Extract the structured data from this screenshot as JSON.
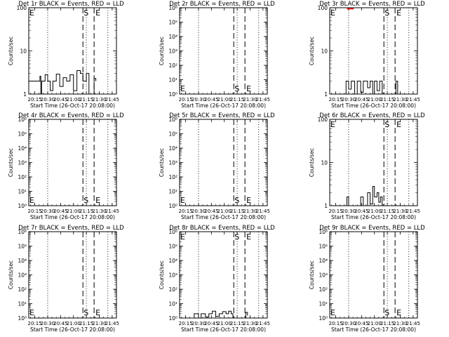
{
  "figure": {
    "title_suffix": "BLACK = Events, RED = LLD",
    "xlabel": "Start Time (26-Oct-17 20:08:00)",
    "ylabel": "Counts/sec",
    "x_ticks": [
      "20:15",
      "20:30",
      "20:45",
      "21:00",
      "21:15",
      "21:30",
      "21:45"
    ],
    "x_range": [
      "20:08",
      "21:50"
    ],
    "marker_s": "S",
    "marker_e": "E",
    "colors": {
      "events": "#000000",
      "lld": "#ff0000"
    }
  },
  "chart_data": [
    {
      "type": "line",
      "title": "Det 1r BLACK = Events, RED = LLD",
      "yscale": "log",
      "ylim": [
        1,
        100
      ],
      "y_ticks": [
        "1",
        "10",
        "100"
      ],
      "xlabel": "Start Time (26-Oct-17 20:08:00)",
      "ylabel": "Counts/sec",
      "dotted_lines": [
        "20:30",
        "21:15",
        "21:40"
      ],
      "dashed_lines": [
        "21:11",
        "21:24"
      ],
      "s_at": "21:11",
      "e_at": "21:24",
      "events_series": [
        {
          "x": "20:08",
          "y": 2
        },
        {
          "x": "20:20",
          "y": 2
        },
        {
          "x": "20:21",
          "y": 2.6
        },
        {
          "x": "20:22",
          "y": 1
        },
        {
          "x": "20:23",
          "y": 2
        },
        {
          "x": "20:27",
          "y": 2.8
        },
        {
          "x": "20:30",
          "y": 2
        },
        {
          "x": "20:33",
          "y": 1.2
        },
        {
          "x": "20:36",
          "y": 2
        },
        {
          "x": "20:40",
          "y": 2.9
        },
        {
          "x": "20:44",
          "y": 1.5
        },
        {
          "x": "20:48",
          "y": 2.4
        },
        {
          "x": "20:52",
          "y": 2
        },
        {
          "x": "20:56",
          "y": 2.8
        },
        {
          "x": "21:00",
          "y": 1.2
        },
        {
          "x": "21:04",
          "y": 3.5
        },
        {
          "x": "21:08",
          "y": 3
        },
        {
          "x": "21:11",
          "y": 2
        },
        {
          "x": "21:15",
          "y": 3
        },
        {
          "x": "21:18",
          "y": 1
        },
        {
          "x": "21:24",
          "y": 2.3
        },
        {
          "x": "21:26",
          "y": 2
        }
      ],
      "lld_series": []
    },
    {
      "type": "line",
      "title": "Det 2r BLACK = Events, RED = LLD",
      "yscale": "log",
      "ylim": [
        1,
        1000000
      ],
      "y_ticks": [
        "10⁰",
        "10¹",
        "10²",
        "10³",
        "10⁴",
        "10⁵",
        "10⁶"
      ],
      "xlabel": "Start Time (26-Oct-17 20:08:00)",
      "ylabel": "Counts/sec",
      "dotted_lines": [
        "20:30",
        "21:15",
        "21:40"
      ],
      "dashed_lines": [
        "21:11",
        "21:24"
      ],
      "s_at": "21:11",
      "e_at": "21:24",
      "events_series": [],
      "lld_series": []
    },
    {
      "type": "line",
      "title": "Det 3r BLACK = Events, RED = LLD",
      "yscale": "log",
      "ylim": [
        1,
        100
      ],
      "y_ticks": [
        "1",
        "10",
        "100"
      ],
      "xlabel": "Start Time (26-Oct-17 20:08:00)",
      "ylabel": "Counts/sec",
      "dotted_lines": [
        "20:30",
        "21:15",
        "21:40"
      ],
      "dashed_lines": [
        "21:11",
        "21:24"
      ],
      "s_at": "21:11",
      "e_at": "21:24",
      "events_series": [
        {
          "x": "20:08",
          "y": 1
        },
        {
          "x": "20:25",
          "y": 1
        },
        {
          "x": "20:27",
          "y": 2
        },
        {
          "x": "20:30",
          "y": 1.3
        },
        {
          "x": "20:33",
          "y": 2
        },
        {
          "x": "20:37",
          "y": 1
        },
        {
          "x": "20:40",
          "y": 2
        },
        {
          "x": "20:44",
          "y": 1.1
        },
        {
          "x": "20:47",
          "y": 2
        },
        {
          "x": "20:52",
          "y": 1.4
        },
        {
          "x": "20:55",
          "y": 2
        },
        {
          "x": "20:58",
          "y": 1
        },
        {
          "x": "21:00",
          "y": 2
        },
        {
          "x": "21:03",
          "y": 1.2
        },
        {
          "x": "21:06",
          "y": 2
        },
        {
          "x": "21:09",
          "y": 1
        },
        {
          "x": "21:24",
          "y": 1
        },
        {
          "x": "21:25",
          "y": 2
        },
        {
          "x": "21:27",
          "y": 1
        }
      ],
      "lld_series": [
        {
          "x": "20:28",
          "y": 100
        },
        {
          "x": "20:36",
          "y": 100
        }
      ]
    },
    {
      "type": "line",
      "title": "Det 4r BLACK = Events, RED = LLD",
      "yscale": "log",
      "ylim": [
        1,
        1000000
      ],
      "y_ticks": [
        "10⁰",
        "10¹",
        "10²",
        "10³",
        "10⁴",
        "10⁵",
        "10⁶"
      ],
      "xlabel": "Start Time (26-Oct-17 20:08:00)",
      "ylabel": "Counts/sec",
      "dotted_lines": [
        "20:30",
        "21:15",
        "21:40"
      ],
      "dashed_lines": [
        "21:11",
        "21:24"
      ],
      "s_at": "21:11",
      "e_at": "21:24",
      "events_series": [],
      "lld_series": []
    },
    {
      "type": "line",
      "title": "Det 5r BLACK = Events, RED = LLD",
      "yscale": "log",
      "ylim": [
        1,
        1000000
      ],
      "y_ticks": [
        "10⁰",
        "10¹",
        "10²",
        "10³",
        "10⁴",
        "10⁵",
        "10⁶"
      ],
      "xlabel": "Start Time (26-Oct-17 20:08:00)",
      "ylabel": "Counts/sec",
      "dotted_lines": [
        "20:30",
        "21:15",
        "21:40"
      ],
      "dashed_lines": [
        "21:11",
        "21:24"
      ],
      "s_at": "21:11",
      "e_at": "21:24",
      "events_series": [],
      "lld_series": []
    },
    {
      "type": "line",
      "title": "Det 6r BLACK = Events, RED = LLD",
      "yscale": "log",
      "ylim": [
        1,
        100
      ],
      "y_ticks": [
        "1",
        "10",
        "100"
      ],
      "xlabel": "Start Time (26-Oct-17 20:08:00)",
      "ylabel": "Counts/sec",
      "dotted_lines": [
        "20:30",
        "21:15",
        "21:40"
      ],
      "dashed_lines": [
        "21:11",
        "21:24"
      ],
      "s_at": "21:11",
      "e_at": "21:24",
      "events_series": [
        {
          "x": "20:08",
          "y": 1
        },
        {
          "x": "20:27",
          "y": 1
        },
        {
          "x": "20:28",
          "y": 1.6
        },
        {
          "x": "20:30",
          "y": 1
        },
        {
          "x": "20:42",
          "y": 1
        },
        {
          "x": "20:44",
          "y": 1.6
        },
        {
          "x": "20:47",
          "y": 1
        },
        {
          "x": "20:52",
          "y": 2
        },
        {
          "x": "20:55",
          "y": 1.1
        },
        {
          "x": "20:58",
          "y": 2.8
        },
        {
          "x": "21:00",
          "y": 1.6
        },
        {
          "x": "21:03",
          "y": 2
        },
        {
          "x": "21:05",
          "y": 1.2
        },
        {
          "x": "21:07",
          "y": 1.6
        },
        {
          "x": "21:09",
          "y": 1
        }
      ],
      "lld_series": []
    },
    {
      "type": "line",
      "title": "Det 7r BLACK = Events, RED = LLD",
      "yscale": "log",
      "ylim": [
        1,
        1000000
      ],
      "y_ticks": [
        "10⁰",
        "10¹",
        "10²",
        "10³",
        "10⁴",
        "10⁵",
        "10⁶"
      ],
      "xlabel": "Start Time (26-Oct-17 20:08:00)",
      "ylabel": "Counts/sec",
      "dotted_lines": [
        "20:30",
        "21:15",
        "21:40"
      ],
      "dashed_lines": [
        "21:11",
        "21:24"
      ],
      "s_at": "21:11",
      "e_at": "21:24",
      "events_series": [],
      "lld_series": []
    },
    {
      "type": "line",
      "title": "Det 8r BLACK = Events, RED = LLD",
      "yscale": "log",
      "ylim": [
        1,
        1000000
      ],
      "y_ticks": [
        "10⁰",
        "10¹",
        "10²",
        "10³",
        "10⁴",
        "10⁵",
        "10⁶"
      ],
      "xlabel": "Start Time (26-Oct-17 20:08:00)",
      "ylabel": "Counts/sec",
      "dotted_lines": [
        "20:30",
        "21:15",
        "21:40"
      ],
      "dashed_lines": [
        "21:11",
        "21:24"
      ],
      "s_at": "21:11",
      "e_at": "21:24",
      "events_series": [
        {
          "x": "20:08",
          "y": 1
        },
        {
          "x": "20:24",
          "y": 1
        },
        {
          "x": "20:25",
          "y": 2
        },
        {
          "x": "20:30",
          "y": 1
        },
        {
          "x": "20:33",
          "y": 2
        },
        {
          "x": "20:38",
          "y": 1.2
        },
        {
          "x": "20:42",
          "y": 2
        },
        {
          "x": "20:46",
          "y": 3
        },
        {
          "x": "20:50",
          "y": 1.3
        },
        {
          "x": "20:54",
          "y": 2
        },
        {
          "x": "20:58",
          "y": 2.8
        },
        {
          "x": "21:02",
          "y": 2
        },
        {
          "x": "21:05",
          "y": 3
        },
        {
          "x": "21:08",
          "y": 2
        },
        {
          "x": "21:10",
          "y": 1
        },
        {
          "x": "21:24",
          "y": 1
        },
        {
          "x": "21:25",
          "y": 2.5
        },
        {
          "x": "21:27",
          "y": 1.5
        }
      ],
      "lld_series": []
    },
    {
      "type": "line",
      "title": "Det 9r BLACK = Events, RED = LLD",
      "yscale": "log",
      "ylim": [
        1,
        1000000
      ],
      "y_ticks": [
        "10⁰",
        "10¹",
        "10²",
        "10³",
        "10⁴",
        "10⁵",
        "10⁶"
      ],
      "xlabel": "Start Time (26-Oct-17 20:08:00)",
      "ylabel": "Counts/sec",
      "dotted_lines": [
        "20:30",
        "21:15",
        "21:40"
      ],
      "dashed_lines": [
        "21:11",
        "21:24"
      ],
      "s_at": "21:11",
      "e_at": "21:24",
      "events_series": [],
      "lld_series": []
    }
  ]
}
